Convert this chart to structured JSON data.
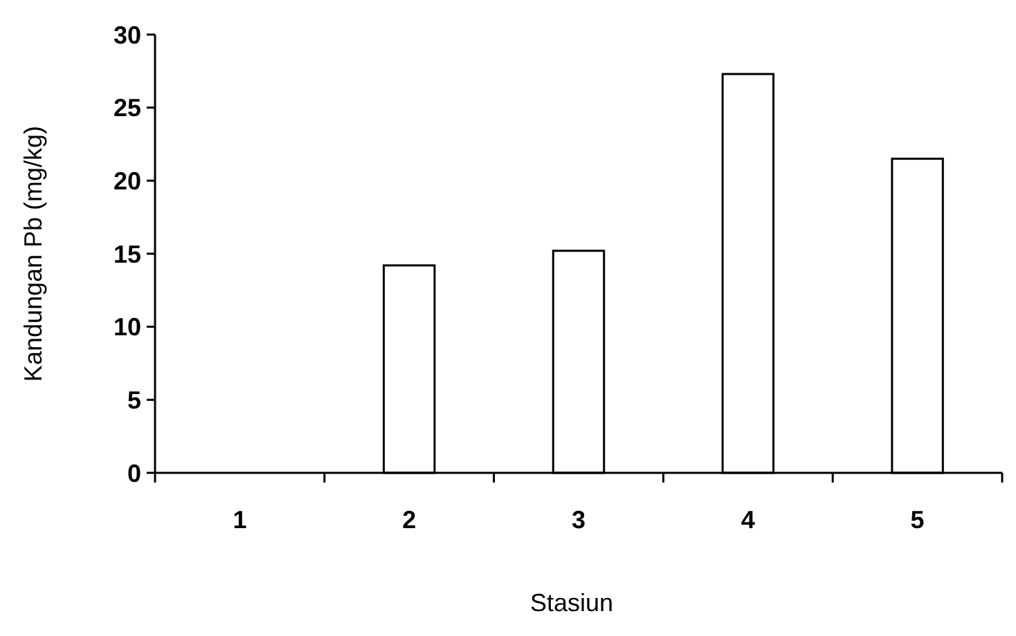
{
  "chart_data": {
    "type": "bar",
    "xlabel": "Stasiun",
    "ylabel": "Kandungan Pb (mg/kg)",
    "categories": [
      "1",
      "2",
      "3",
      "4",
      "5"
    ],
    "values": [
      0,
      14.2,
      15.2,
      27.3,
      21.5
    ],
    "color": "#ffffff",
    "ylim": [
      0,
      30
    ],
    "yticks": [
      0,
      5,
      10,
      15,
      20,
      25,
      30
    ],
    "grid": false
  }
}
